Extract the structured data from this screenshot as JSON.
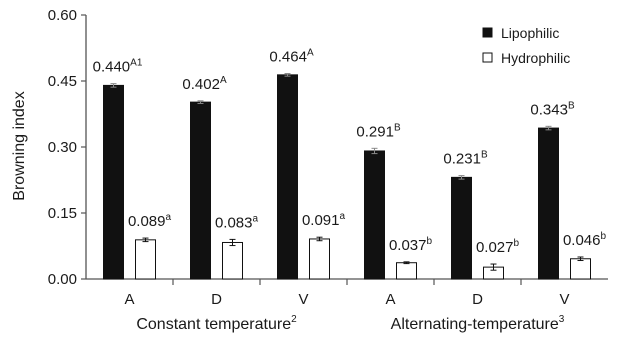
{
  "chart_data": {
    "type": "bar",
    "title": "",
    "ylabel": "Browning index",
    "ylim": [
      0,
      0.6
    ],
    "yticks": [
      "0.00",
      "0.15",
      "0.30",
      "0.45",
      "0.60"
    ],
    "grid": false,
    "legend_position": "top-right",
    "categories": [
      "A",
      "D",
      "V",
      "A",
      "D",
      "V"
    ],
    "groups": [
      {
        "label": "Constant temperature",
        "superscript": "2"
      },
      {
        "label": "Alternating-temperature",
        "superscript": "3"
      }
    ],
    "series": [
      {
        "name": "Lipophilic",
        "color": "#111111",
        "values": [
          0.44,
          0.402,
          0.464,
          0.291,
          0.231,
          0.343
        ],
        "errors": [
          0.004,
          0.003,
          0.003,
          0.006,
          0.004,
          0.004
        ],
        "labels": [
          "0.440",
          "0.402",
          "0.464",
          "0.291",
          "0.231",
          "0.343"
        ],
        "label_superscripts": [
          "A1",
          "A",
          "A",
          "B",
          "B",
          "B"
        ]
      },
      {
        "name": "Hydrophilic",
        "color": "#ffffff",
        "values": [
          0.089,
          0.083,
          0.091,
          0.037,
          0.027,
          0.046
        ],
        "errors": [
          0.004,
          0.007,
          0.004,
          0.002,
          0.007,
          0.004
        ],
        "labels": [
          "0.089",
          "0.083",
          "0.091",
          "0.037",
          "0.027",
          "0.046"
        ],
        "label_superscripts": [
          "a",
          "a",
          "a",
          "b",
          "b",
          "b"
        ]
      }
    ]
  }
}
